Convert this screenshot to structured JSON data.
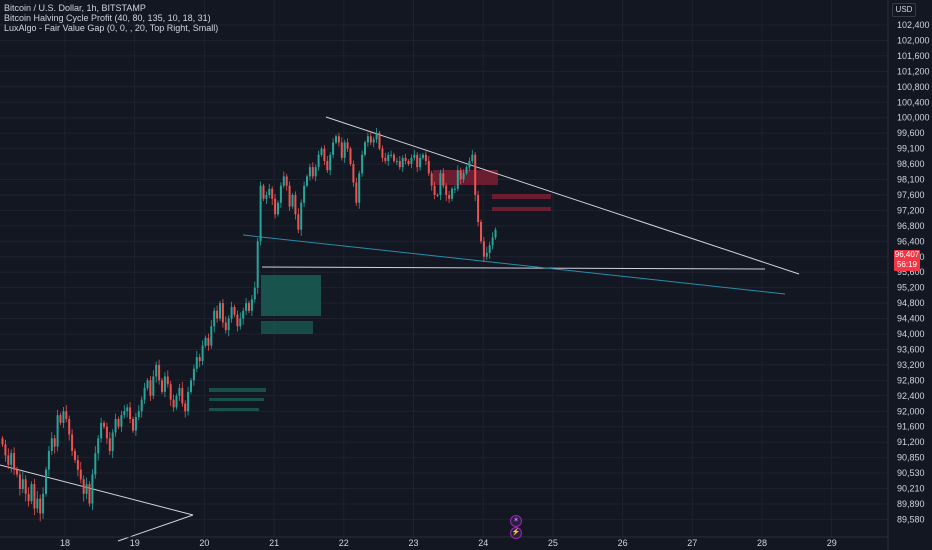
{
  "legend": {
    "line1": "Bitcoin / U.S. Dollar, 1h, BITSTAMP",
    "line2": "Bitcoin Halving Cycle Profit (40, 80, 135, 10, 18, 31)",
    "line3": "LuxAlgo - Fair Value Gap (0, 0, , 20, Top Right, Small)"
  },
  "currency": "USD",
  "price_tag": {
    "price": "96,407",
    "countdown": "56:19"
  },
  "markers": {
    "top": "✶",
    "bottom": "⚡"
  },
  "colors": {
    "background": "#131722",
    "grid": "#1e2230",
    "up": "#26a69a",
    "down": "#ef5350",
    "last_price": "#f23645",
    "trendline": "#d1d4dc",
    "teal_line": "#2a8ca8"
  },
  "chart_data": {
    "type": "candlestick",
    "y_ticks": [
      102400,
      102000,
      101600,
      101200,
      100800,
      100400,
      100000,
      99600,
      99100,
      98600,
      98100,
      97600,
      97200,
      96800,
      96400,
      96000,
      95600,
      95200,
      94800,
      94400,
      94000,
      93600,
      93200,
      92800,
      92400,
      92000,
      91600,
      91200,
      90850,
      90530,
      90210,
      89890,
      89580
    ],
    "y_tick_labels": [
      "102,400",
      "102,000",
      "101,600",
      "101,200",
      "100,800",
      "100,400",
      "100,000",
      "99,600",
      "99,100",
      "98,600",
      "98,100",
      "97,600",
      "97,200",
      "96,800",
      "96,400",
      "96,000",
      "95,600",
      "95,200",
      "94,800",
      "94,400",
      "94,000",
      "93,600",
      "93,200",
      "92,800",
      "92,400",
      "92,000",
      "91,600",
      "91,200",
      "90,850",
      "90,530",
      "90,210",
      "89,890",
      "89,580"
    ],
    "x_ticks": [
      18,
      19,
      20,
      21,
      22,
      23,
      24,
      25,
      26,
      27,
      28,
      29
    ],
    "x_tick_labels": [
      "18",
      "19",
      "20",
      "21",
      "22",
      "23",
      "24",
      "25",
      "26",
      "27",
      "28",
      "29"
    ],
    "close": [
      91150,
      90900,
      90700,
      90950,
      90600,
      90500,
      90200,
      90400,
      90100,
      89950,
      90300,
      89800,
      90000,
      89700,
      90100,
      90600,
      91000,
      91300,
      91100,
      91900,
      91700,
      92000,
      91800,
      91400,
      91000,
      90800,
      90600,
      90400,
      90100,
      90300,
      89900,
      90500,
      90950,
      91300,
      91700,
      91600,
      91300,
      91000,
      91450,
      91800,
      91600,
      91900,
      92000,
      92100,
      91800,
      91500,
      91850,
      92000,
      92300,
      92600,
      92800,
      92400,
      92900,
      93200,
      92800,
      92500,
      92900,
      92700,
      92300,
      92100,
      92400,
      92600,
      92200,
      92000,
      92500,
      92800,
      93100,
      93400,
      93300,
      93700,
      93900,
      93700,
      94200,
      94600,
      94400,
      94800,
      94300,
      94100,
      94400,
      94700,
      94500,
      94200,
      94400,
      94600,
      94800,
      94600,
      94900,
      95200,
      96400,
      97900,
      97500,
      97600,
      97800,
      97500,
      97100,
      97400,
      97900,
      98200,
      97900,
      97300,
      97600,
      97100,
      96700,
      97400,
      97900,
      98200,
      98500,
      98200,
      98500,
      98900,
      99100,
      98700,
      98400,
      98900,
      99300,
      99500,
      99300,
      98800,
      99300,
      99100,
      98600,
      98000,
      97400,
      98300,
      98900,
      99300,
      99500,
      99300,
      99400,
      99600,
      99100,
      98800,
      98700,
      98900,
      98900,
      98700,
      98700,
      98500,
      98800,
      98700,
      98600,
      98800,
      98900,
      98500,
      98800,
      98900,
      98700,
      98300,
      97900,
      97600,
      97600,
      98300,
      97900,
      97600,
      97500,
      97800,
      97800,
      98400,
      98100,
      98300,
      98500,
      98700,
      98900,
      97600,
      96900,
      96400,
      96000,
      96100,
      96300,
      96500,
      96700
    ]
  }
}
